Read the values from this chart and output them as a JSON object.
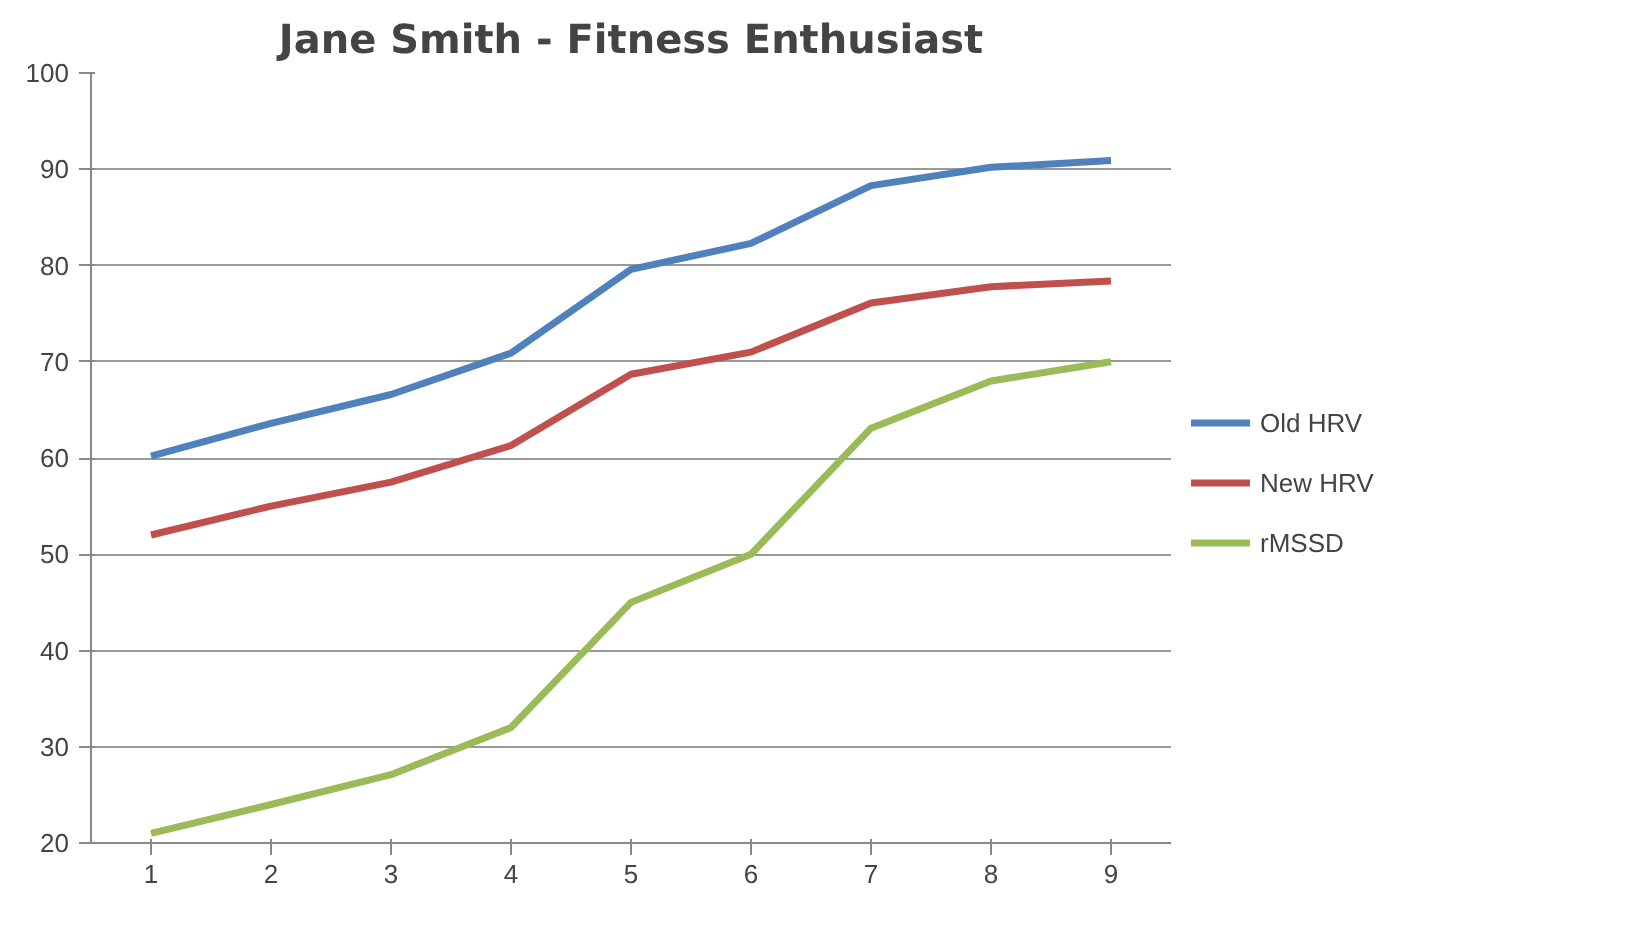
{
  "chart_data": {
    "type": "line",
    "title": "Jane Smith - Fitness Enthusiast",
    "categories": [
      "1",
      "2",
      "3",
      "4",
      "5",
      "6",
      "7",
      "8",
      "9"
    ],
    "series": [
      {
        "name": "Old HRV",
        "color": "#4f81bd",
        "values": [
          60.2,
          63.6,
          66.6,
          70.9,
          79.6,
          82.3,
          88.3,
          90.2,
          90.9
        ]
      },
      {
        "name": "New HRV",
        "color": "#c0504d",
        "values": [
          52.0,
          55.0,
          57.5,
          61.3,
          68.7,
          71.0,
          76.1,
          77.8,
          78.4
        ]
      },
      {
        "name": "rMSSD",
        "color": "#9bbb59",
        "values": [
          21.0,
          24.0,
          27.1,
          32.0,
          45.0,
          50.0,
          63.1,
          68.0,
          70.0
        ]
      }
    ],
    "ylim": [
      20,
      100
    ],
    "yticks": [
      20,
      30,
      40,
      50,
      60,
      70,
      80,
      90,
      100
    ],
    "grid": "y",
    "legend": "right",
    "marker": "none",
    "line_style": "solid"
  }
}
